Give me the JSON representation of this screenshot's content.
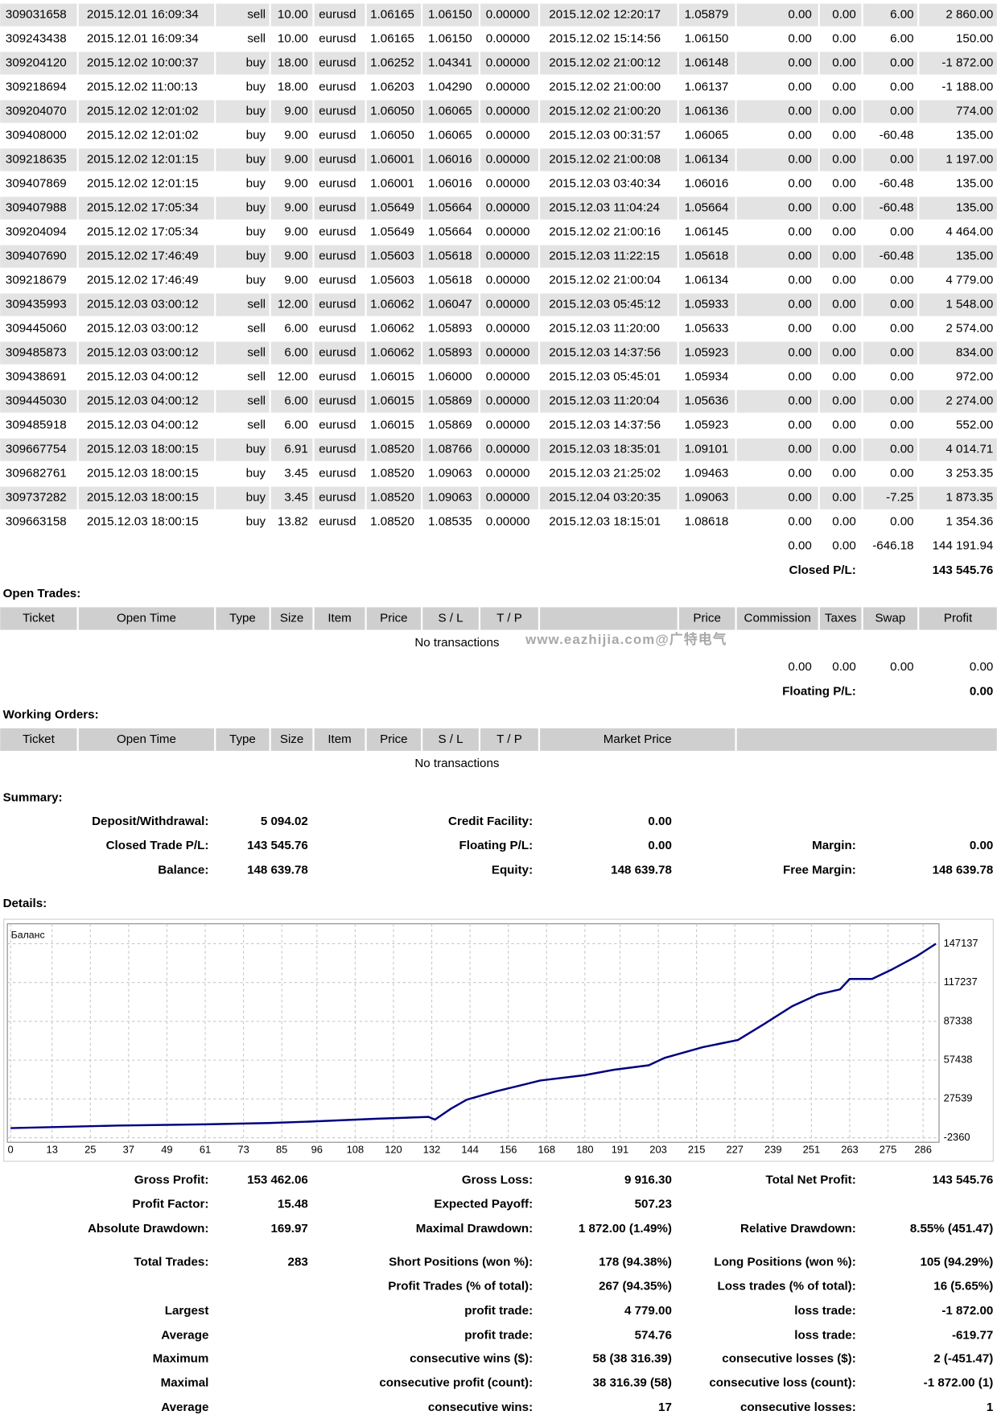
{
  "closed_trades": {
    "rows": [
      [
        "309031658",
        "2015.12.01 16:09:34",
        "sell",
        "10.00",
        "eurusd",
        "1.06165",
        "1.06150",
        "0.00000",
        "2015.12.02 12:20:17",
        "1.05879",
        "0.00",
        "0.00",
        "6.00",
        "2 860.00"
      ],
      [
        "309243438",
        "2015.12.01 16:09:34",
        "sell",
        "10.00",
        "eurusd",
        "1.06165",
        "1.06150",
        "0.00000",
        "2015.12.02 15:14:56",
        "1.06150",
        "0.00",
        "0.00",
        "6.00",
        "150.00"
      ],
      [
        "309204120",
        "2015.12.02 10:00:37",
        "buy",
        "18.00",
        "eurusd",
        "1.06252",
        "1.04341",
        "0.00000",
        "2015.12.02 21:00:12",
        "1.06148",
        "0.00",
        "0.00",
        "0.00",
        "-1 872.00"
      ],
      [
        "309218694",
        "2015.12.02 11:00:13",
        "buy",
        "18.00",
        "eurusd",
        "1.06203",
        "1.04290",
        "0.00000",
        "2015.12.02 21:00:00",
        "1.06137",
        "0.00",
        "0.00",
        "0.00",
        "-1 188.00"
      ],
      [
        "309204070",
        "2015.12.02 12:01:02",
        "buy",
        "9.00",
        "eurusd",
        "1.06050",
        "1.06065",
        "0.00000",
        "2015.12.02 21:00:20",
        "1.06136",
        "0.00",
        "0.00",
        "0.00",
        "774.00"
      ],
      [
        "309408000",
        "2015.12.02 12:01:02",
        "buy",
        "9.00",
        "eurusd",
        "1.06050",
        "1.06065",
        "0.00000",
        "2015.12.03 00:31:57",
        "1.06065",
        "0.00",
        "0.00",
        "-60.48",
        "135.00"
      ],
      [
        "309218635",
        "2015.12.02 12:01:15",
        "buy",
        "9.00",
        "eurusd",
        "1.06001",
        "1.06016",
        "0.00000",
        "2015.12.02 21:00:08",
        "1.06134",
        "0.00",
        "0.00",
        "0.00",
        "1 197.00"
      ],
      [
        "309407869",
        "2015.12.02 12:01:15",
        "buy",
        "9.00",
        "eurusd",
        "1.06001",
        "1.06016",
        "0.00000",
        "2015.12.03 03:40:34",
        "1.06016",
        "0.00",
        "0.00",
        "-60.48",
        "135.00"
      ],
      [
        "309407988",
        "2015.12.02 17:05:34",
        "buy",
        "9.00",
        "eurusd",
        "1.05649",
        "1.05664",
        "0.00000",
        "2015.12.03 11:04:24",
        "1.05664",
        "0.00",
        "0.00",
        "-60.48",
        "135.00"
      ],
      [
        "309204094",
        "2015.12.02 17:05:34",
        "buy",
        "9.00",
        "eurusd",
        "1.05649",
        "1.05664",
        "0.00000",
        "2015.12.02 21:00:16",
        "1.06145",
        "0.00",
        "0.00",
        "0.00",
        "4 464.00"
      ],
      [
        "309407690",
        "2015.12.02 17:46:49",
        "buy",
        "9.00",
        "eurusd",
        "1.05603",
        "1.05618",
        "0.00000",
        "2015.12.03 11:22:15",
        "1.05618",
        "0.00",
        "0.00",
        "-60.48",
        "135.00"
      ],
      [
        "309218679",
        "2015.12.02 17:46:49",
        "buy",
        "9.00",
        "eurusd",
        "1.05603",
        "1.05618",
        "0.00000",
        "2015.12.02 21:00:04",
        "1.06134",
        "0.00",
        "0.00",
        "0.00",
        "4 779.00"
      ],
      [
        "309435993",
        "2015.12.03 03:00:12",
        "sell",
        "12.00",
        "eurusd",
        "1.06062",
        "1.06047",
        "0.00000",
        "2015.12.03 05:45:12",
        "1.05933",
        "0.00",
        "0.00",
        "0.00",
        "1 548.00"
      ],
      [
        "309445060",
        "2015.12.03 03:00:12",
        "sell",
        "6.00",
        "eurusd",
        "1.06062",
        "1.05893",
        "0.00000",
        "2015.12.03 11:20:00",
        "1.05633",
        "0.00",
        "0.00",
        "0.00",
        "2 574.00"
      ],
      [
        "309485873",
        "2015.12.03 03:00:12",
        "sell",
        "6.00",
        "eurusd",
        "1.06062",
        "1.05893",
        "0.00000",
        "2015.12.03 14:37:56",
        "1.05923",
        "0.00",
        "0.00",
        "0.00",
        "834.00"
      ],
      [
        "309438691",
        "2015.12.03 04:00:12",
        "sell",
        "12.00",
        "eurusd",
        "1.06015",
        "1.06000",
        "0.00000",
        "2015.12.03 05:45:01",
        "1.05934",
        "0.00",
        "0.00",
        "0.00",
        "972.00"
      ],
      [
        "309445030",
        "2015.12.03 04:00:12",
        "sell",
        "6.00",
        "eurusd",
        "1.06015",
        "1.05869",
        "0.00000",
        "2015.12.03 11:20:04",
        "1.05636",
        "0.00",
        "0.00",
        "0.00",
        "2 274.00"
      ],
      [
        "309485918",
        "2015.12.03 04:00:12",
        "sell",
        "6.00",
        "eurusd",
        "1.06015",
        "1.05869",
        "0.00000",
        "2015.12.03 14:37:56",
        "1.05923",
        "0.00",
        "0.00",
        "0.00",
        "552.00"
      ],
      [
        "309667754",
        "2015.12.03 18:00:15",
        "buy",
        "6.91",
        "eurusd",
        "1.08520",
        "1.08766",
        "0.00000",
        "2015.12.03 18:35:01",
        "1.09101",
        "0.00",
        "0.00",
        "0.00",
        "4 014.71"
      ],
      [
        "309682761",
        "2015.12.03 18:00:15",
        "buy",
        "3.45",
        "eurusd",
        "1.08520",
        "1.09063",
        "0.00000",
        "2015.12.03 21:25:02",
        "1.09463",
        "0.00",
        "0.00",
        "0.00",
        "3 253.35"
      ],
      [
        "309737282",
        "2015.12.03 18:00:15",
        "buy",
        "3.45",
        "eurusd",
        "1.08520",
        "1.09063",
        "0.00000",
        "2015.12.04 03:20:35",
        "1.09063",
        "0.00",
        "0.00",
        "-7.25",
        "1 873.35"
      ],
      [
        "309663158",
        "2015.12.03 18:00:15",
        "buy",
        "13.82",
        "eurusd",
        "1.08520",
        "1.08535",
        "0.00000",
        "2015.12.03 18:15:01",
        "1.08618",
        "0.00",
        "0.00",
        "0.00",
        "1 354.36"
      ]
    ],
    "totals": [
      "0.00",
      "0.00",
      "-646.18",
      "144 191.94"
    ],
    "closed_pl_label": "Closed P/L:",
    "closed_pl": "143 545.76"
  },
  "open_trades": {
    "title": "Open Trades:",
    "headers": [
      "Ticket",
      "Open Time",
      "Type",
      "Size",
      "Item",
      "Price",
      "S / L",
      "T / P",
      "Price",
      "Commission",
      "Taxes",
      "Swap",
      "Profit"
    ],
    "no_transactions": "No transactions",
    "totals": [
      "0.00",
      "0.00",
      "0.00",
      "0.00"
    ],
    "floating_label": "Floating P/L:",
    "floating": "0.00"
  },
  "watermark": "www.eazhijia.com@广特电气",
  "working_orders": {
    "title": "Working Orders:",
    "headers": [
      "Ticket",
      "Open Time",
      "Type",
      "Size",
      "Item",
      "Price",
      "S / L",
      "T / P",
      "Market Price"
    ],
    "no_transactions": "No transactions"
  },
  "summary": {
    "title": "Summary:",
    "rows": [
      {
        "left": {
          "label": "Deposit/Withdrawal:",
          "value": "5 094.02"
        },
        "middle": {
          "label": "Credit Facility:",
          "value": "0.00"
        }
      },
      {
        "left": {
          "label": "Closed Trade P/L:",
          "value": "143 545.76"
        },
        "middle": {
          "label": "Floating P/L:",
          "value": "0.00"
        },
        "right": {
          "label": "Margin:",
          "value": "0.00"
        }
      },
      {
        "left": {
          "label": "Balance:",
          "value": "148 639.78"
        },
        "middle": {
          "label": "Equity:",
          "value": "148 639.78"
        },
        "right": {
          "label": "Free Margin:",
          "value": "148 639.78"
        }
      }
    ]
  },
  "details": {
    "title": "Details:",
    "chart": {
      "type": "line",
      "label": "Баланс",
      "color": "#000080",
      "x": [
        0,
        33,
        61,
        81,
        95,
        115,
        131,
        133,
        138,
        143,
        152,
        159,
        166,
        180,
        189,
        200,
        205,
        217,
        228,
        236,
        245,
        253,
        260,
        263,
        270,
        276,
        284,
        290
      ],
      "values": [
        5094,
        7000,
        8000,
        9000,
        10200,
        12300,
        13700,
        11600,
        20000,
        27000,
        33300,
        37500,
        41700,
        45900,
        50000,
        53500,
        59200,
        67500,
        73000,
        85000,
        99000,
        108000,
        112000,
        120000,
        120000,
        127000,
        137500,
        147137
      ],
      "xlim": [
        -1,
        291
      ],
      "ylim": [
        -5850,
        162500
      ],
      "xticks": [
        0,
        13,
        25,
        37,
        49,
        61,
        73,
        85,
        96,
        108,
        120,
        132,
        144,
        156,
        168,
        180,
        191,
        203,
        215,
        227,
        239,
        251,
        263,
        275,
        286
      ],
      "yticks": [
        147137,
        117237,
        87338,
        57438,
        27539,
        -2360
      ],
      "grid": true
    },
    "stats": [
      {
        "left": {
          "label": "Gross Profit:",
          "value": "153 462.06"
        },
        "middle": {
          "label": "Gross Loss:",
          "value": "9 916.30"
        },
        "right": {
          "label": "Total Net Profit:",
          "value": "143 545.76"
        }
      },
      {
        "left": {
          "label": "Profit Factor:",
          "value": "15.48"
        },
        "middle": {
          "label": "Expected Payoff:",
          "value": "507.23"
        }
      },
      {
        "left": {
          "label": "Absolute Drawdown:",
          "value": "169.97"
        },
        "middle": {
          "label": "Maximal Drawdown:",
          "value": "1 872.00 (1.49%)"
        },
        "right": {
          "label": "Relative Drawdown:",
          "value": "8.55% (451.47)"
        }
      },
      {
        "left": {
          "label": "Total Trades:",
          "value": "283"
        },
        "middle": {
          "label": "Short Positions (won %):",
          "value": "178 (94.38%)"
        },
        "right": {
          "label": "Long Positions (won %):",
          "value": "105 (94.29%)"
        }
      },
      {
        "middle": {
          "label": "Profit Trades (% of total):",
          "value": "267 (94.35%)"
        },
        "right": {
          "label": "Loss trades (% of total):",
          "value": "16 (5.65%)"
        }
      },
      {
        "left": {
          "label": "Largest"
        },
        "middle": {
          "label": "profit trade:",
          "value": "4 779.00"
        },
        "right": {
          "label": "loss trade:",
          "value": "-1 872.00"
        }
      },
      {
        "left": {
          "label": "Average"
        },
        "middle": {
          "label": "profit trade:",
          "value": "574.76"
        },
        "right": {
          "label": "loss trade:",
          "value": "-619.77"
        }
      },
      {
        "left": {
          "label": "Maximum"
        },
        "middle": {
          "label": "consecutive wins ($):",
          "value": "58 (38 316.39)"
        },
        "right": {
          "label": "consecutive losses ($):",
          "value": "2 (-451.47)"
        }
      },
      {
        "left": {
          "label": "Maximal"
        },
        "middle": {
          "label": "consecutive profit (count):",
          "value": "38 316.39 (58)"
        },
        "right": {
          "label": "consecutive loss (count):",
          "value": "-1 872.00 (1)"
        }
      },
      {
        "left": {
          "label": "Average"
        },
        "middle": {
          "label": "consecutive wins:",
          "value": "17"
        },
        "right": {
          "label": "consecutive losses:",
          "value": "1"
        }
      }
    ]
  }
}
